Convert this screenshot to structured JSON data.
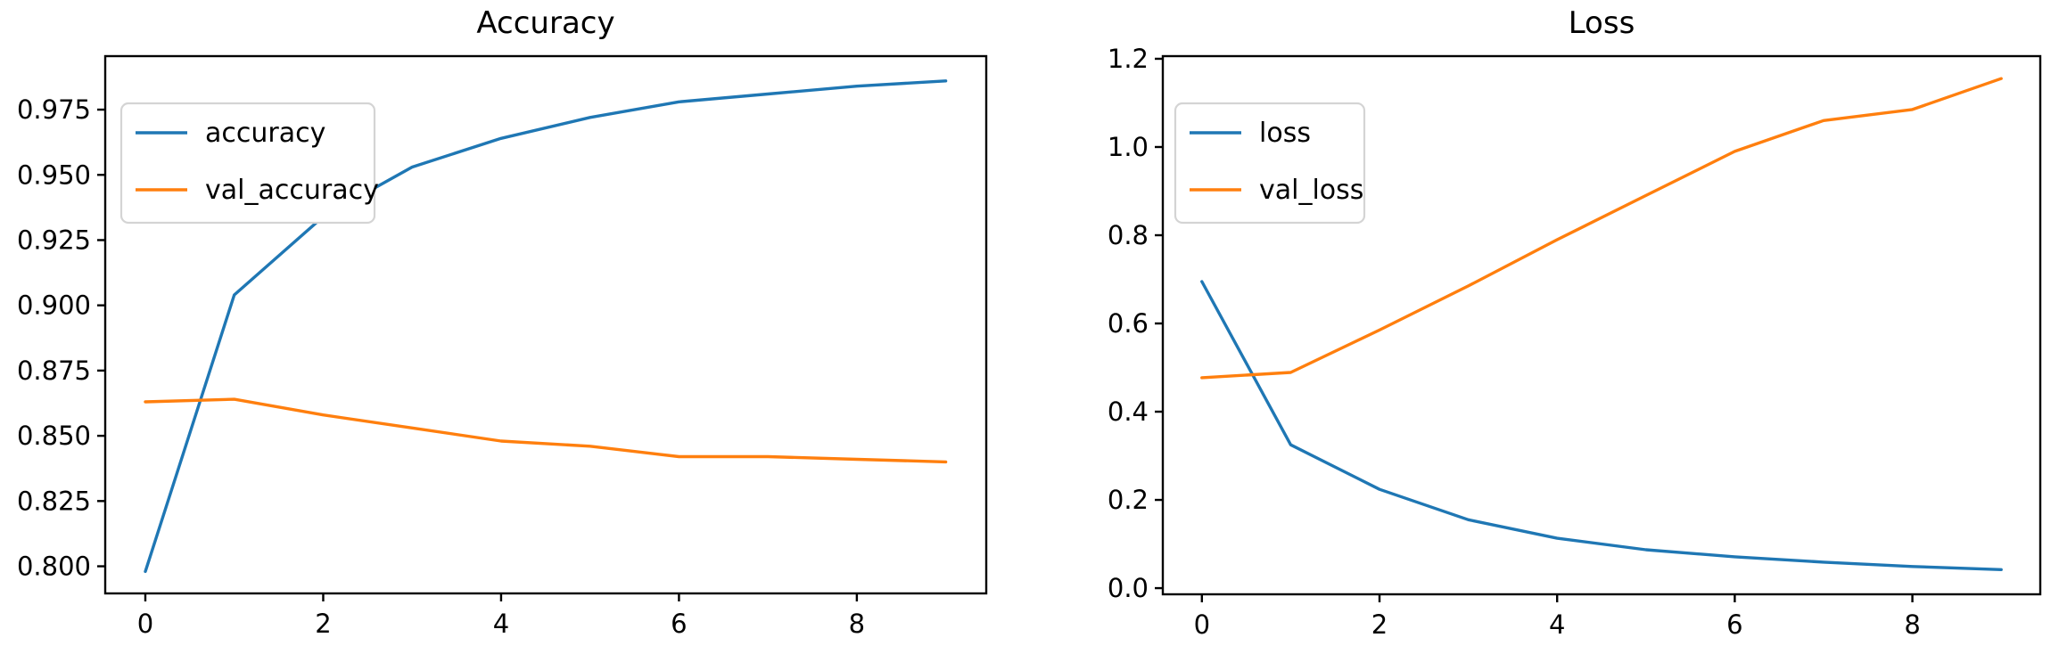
{
  "figure": {
    "background": "#ffffff",
    "text_color": "#000000",
    "spine_color": "#000000",
    "legend_border_color": "#d4d4d4"
  },
  "chart_data": [
    {
      "type": "line",
      "title": "Accuracy",
      "xlabel": "",
      "ylabel": "",
      "x": [
        0,
        1,
        2,
        3,
        4,
        5,
        6,
        7,
        8,
        9
      ],
      "series": [
        {
          "name": "accuracy",
          "color": "#1f77b4",
          "values": [
            0.798,
            0.904,
            0.934,
            0.953,
            0.964,
            0.972,
            0.978,
            0.981,
            0.984,
            0.986
          ]
        },
        {
          "name": "val_accuracy",
          "color": "#ff7f0e",
          "values": [
            0.863,
            0.864,
            0.858,
            0.853,
            0.848,
            0.846,
            0.842,
            0.842,
            0.841,
            0.84
          ]
        }
      ],
      "xtick_values": [
        0,
        2,
        4,
        6,
        8
      ],
      "xtick_labels": [
        "0",
        "2",
        "4",
        "6",
        "8"
      ],
      "ytick_values": [
        0.8,
        0.825,
        0.85,
        0.875,
        0.9,
        0.925,
        0.95,
        0.975
      ],
      "ytick_labels": [
        "0.800",
        "0.825",
        "0.850",
        "0.875",
        "0.900",
        "0.925",
        "0.950",
        "0.975"
      ],
      "xlim": [
        -0.451,
        9.455
      ],
      "ylim": [
        0.7896,
        0.9955
      ],
      "grid": false,
      "legend_position": "upper left",
      "legend_labels": [
        "accuracy",
        "val_accuracy"
      ]
    },
    {
      "type": "line",
      "title": "Loss",
      "xlabel": "",
      "ylabel": "",
      "x": [
        0,
        1,
        2,
        3,
        4,
        5,
        6,
        7,
        8,
        9
      ],
      "series": [
        {
          "name": "loss",
          "color": "#1f77b4",
          "values": [
            0.695,
            0.325,
            0.224,
            0.155,
            0.113,
            0.087,
            0.071,
            0.059,
            0.049,
            0.042
          ]
        },
        {
          "name": "val_loss",
          "color": "#ff7f0e",
          "values": [
            0.477,
            0.489,
            0.585,
            0.685,
            0.79,
            0.89,
            0.99,
            1.06,
            1.085,
            1.155
          ]
        }
      ],
      "xtick_values": [
        0,
        2,
        4,
        6,
        8
      ],
      "xtick_labels": [
        "0",
        "2",
        "4",
        "6",
        "8"
      ],
      "ytick_values": [
        0.0,
        0.2,
        0.4,
        0.6,
        0.8,
        1.0,
        1.2
      ],
      "ytick_labels": [
        "0.0",
        "0.2",
        "0.4",
        "0.6",
        "0.8",
        "1.0",
        "1.2"
      ],
      "xlim": [
        -0.44,
        9.44
      ],
      "ylim": [
        -0.014,
        1.206
      ],
      "grid": false,
      "legend_position": "upper left",
      "legend_labels": [
        "loss",
        "val_loss"
      ]
    }
  ]
}
